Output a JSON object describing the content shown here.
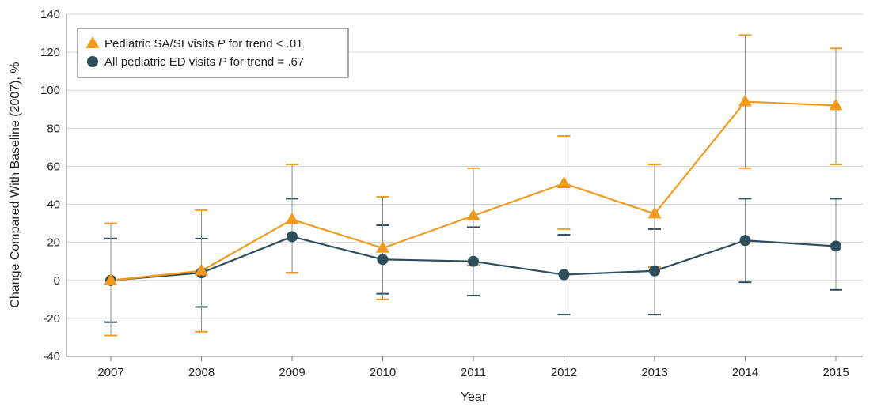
{
  "chart_data": {
    "type": "line",
    "xlabel": "Year",
    "ylabel": "Change Compared With Baseline (2007), %",
    "ylim": [
      -40,
      140
    ],
    "yticks": [
      -40,
      -20,
      0,
      20,
      40,
      60,
      80,
      100,
      120,
      140
    ],
    "categories": [
      "2007",
      "2008",
      "2009",
      "2010",
      "2011",
      "2012",
      "2013",
      "2014",
      "2015"
    ],
    "grid": true,
    "legend_position": "top-left",
    "series": [
      {
        "name": "Pediatric SA/SI visits",
        "legend_p_prefix": "P",
        "legend_p_text": " for trend < .01",
        "marker": "triangle",
        "color": "#f39a1e",
        "values": [
          0,
          5,
          32,
          17,
          34,
          51,
          35,
          94,
          92
        ],
        "error_low": [
          -29,
          -27,
          4,
          -10,
          8,
          27,
          7,
          59,
          61
        ],
        "error_high": [
          30,
          37,
          61,
          44,
          59,
          76,
          61,
          129,
          122
        ]
      },
      {
        "name": "All pediatric ED visits",
        "legend_p_prefix": "P",
        "legend_p_text": " for trend = .67",
        "marker": "circle",
        "color": "#2f4e5c",
        "values": [
          0,
          4,
          23,
          11,
          10,
          3,
          5,
          21,
          18
        ],
        "error_low": [
          -22,
          -14,
          4,
          -7,
          -8,
          -18,
          -18,
          -1,
          -5
        ],
        "error_high": [
          22,
          22,
          43,
          29,
          28,
          24,
          27,
          43,
          43
        ]
      }
    ]
  }
}
